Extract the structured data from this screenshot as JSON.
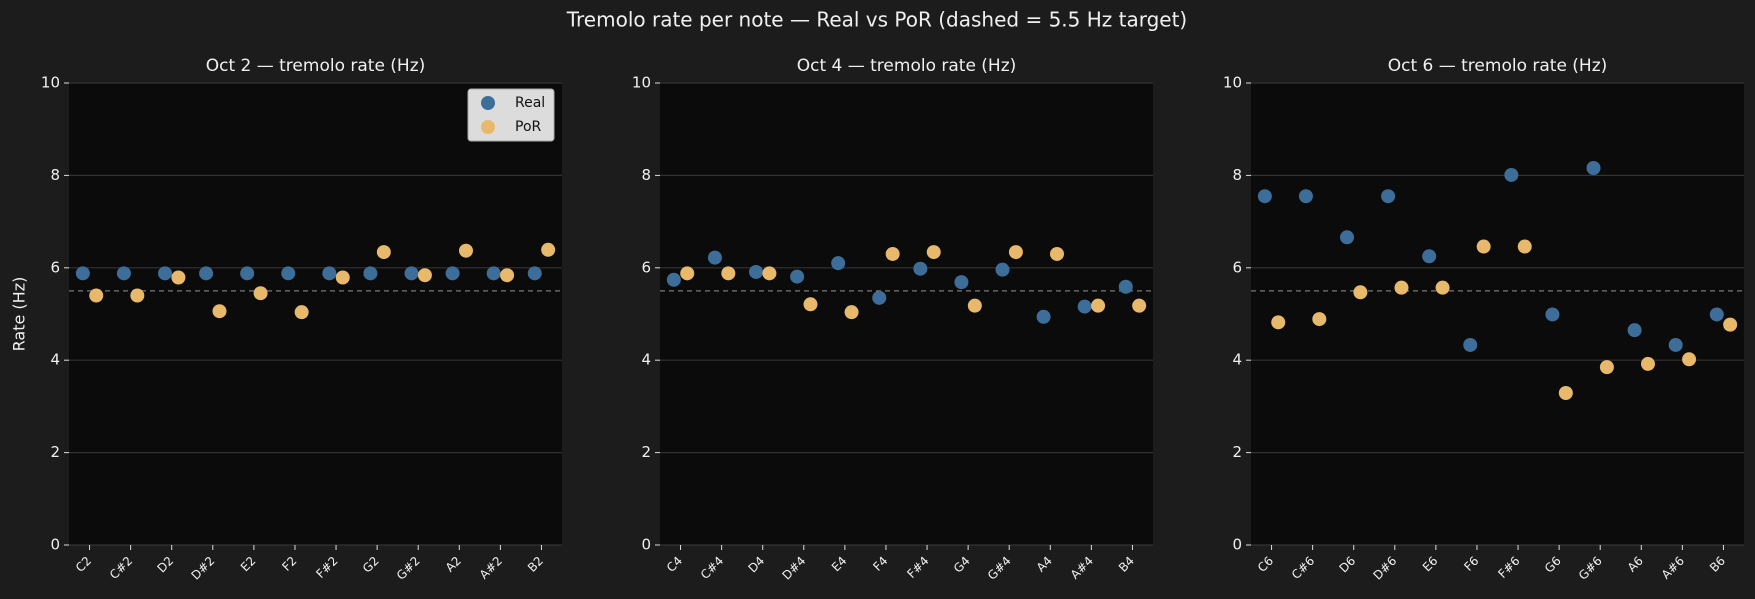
{
  "title": "Tremolo rate per note — Real vs PoR (dashed = 5.5 Hz target)",
  "chart_data": [
    {
      "type": "scatter",
      "title": "Oct 2 — tremolo rate (Hz)",
      "ylabel": "Rate (Hz)",
      "legend": "upper right",
      "categories": [
        "C2",
        "C#2",
        "D2",
        "D#2",
        "E2",
        "F2",
        "F#2",
        "G2",
        "G#2",
        "A2",
        "A#2",
        "B2"
      ],
      "series": [
        {
          "name": "Real",
          "color": "#3d6e99",
          "values": [
            5.88,
            5.88,
            5.88,
            5.88,
            5.88,
            5.88,
            5.88,
            5.88,
            5.88,
            5.88,
            5.88,
            5.88
          ]
        },
        {
          "name": "PoR",
          "color": "#e8b96a",
          "values": [
            5.4,
            5.4,
            5.79,
            5.06,
            5.45,
            5.04,
            5.79,
            6.34,
            5.84,
            6.37,
            5.84,
            6.39
          ]
        }
      ],
      "ylim": [
        0,
        10
      ],
      "yticks": [
        0,
        2,
        4,
        6,
        8,
        10
      ],
      "grid": true,
      "reference_line": 5.5
    },
    {
      "type": "scatter",
      "title": "Oct 4 — tremolo rate (Hz)",
      "categories": [
        "C4",
        "C#4",
        "D4",
        "D#4",
        "E4",
        "F4",
        "F#4",
        "G4",
        "G#4",
        "A4",
        "A#4",
        "B4"
      ],
      "series": [
        {
          "name": "Real",
          "color": "#3d6e99",
          "values": [
            5.74,
            6.22,
            5.91,
            5.81,
            6.1,
            5.35,
            5.98,
            5.69,
            5.96,
            4.94,
            5.16,
            5.59
          ]
        },
        {
          "name": "PoR",
          "color": "#e8b96a",
          "values": [
            5.88,
            5.88,
            5.88,
            5.21,
            5.04,
            6.3,
            6.34,
            5.18,
            6.34,
            6.3,
            5.18,
            5.18
          ]
        }
      ],
      "ylim": [
        0,
        10
      ],
      "yticks": [
        0,
        2,
        4,
        6,
        8,
        10
      ],
      "grid": true,
      "reference_line": 5.5
    },
    {
      "type": "scatter",
      "title": "Oct 6 — tremolo rate (Hz)",
      "categories": [
        "C6",
        "C#6",
        "D6",
        "D#6",
        "E6",
        "F6",
        "F#6",
        "G6",
        "G#6",
        "A6",
        "A#6",
        "B6"
      ],
      "series": [
        {
          "name": "Real",
          "color": "#3d6e99",
          "values": [
            7.55,
            7.55,
            6.66,
            7.55,
            6.25,
            4.33,
            8.01,
            4.99,
            8.16,
            4.65,
            4.33,
            4.99
          ]
        },
        {
          "name": "PoR",
          "color": "#e8b96a",
          "values": [
            4.82,
            4.89,
            5.47,
            5.57,
            5.57,
            6.46,
            6.46,
            3.29,
            3.85,
            3.92,
            4.02,
            4.77
          ]
        }
      ],
      "ylim": [
        0,
        10
      ],
      "yticks": [
        0,
        2,
        4,
        6,
        8,
        10
      ],
      "grid": true,
      "reference_line": 5.5
    }
  ]
}
